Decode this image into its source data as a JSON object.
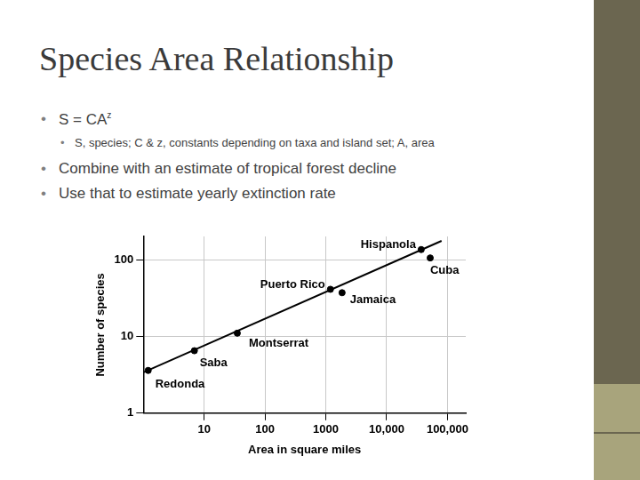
{
  "slide": {
    "title": "Species Area Relationship",
    "bullets": [
      {
        "text": "S = CA",
        "superscript": "z",
        "sub_bullets": [
          "S, species; C & z, constants depending on taxa and island set; A, area"
        ]
      },
      {
        "text": "Combine with an estimate of tropical forest decline",
        "sub_bullets": []
      },
      {
        "text": "Use that to estimate yearly extinction rate",
        "sub_bullets": []
      }
    ]
  },
  "chart_data": {
    "type": "scatter",
    "x_label": "Area in square miles",
    "y_label": "Number of species",
    "x": [
      1.2,
      6.9,
      35,
      1190,
      1850,
      37000,
      52000
    ],
    "values": [
      3.6,
      6.5,
      11,
      41,
      37,
      135,
      105
    ],
    "point_labels": [
      "Redonda",
      "Saba",
      "Montserrat",
      "Puerto Rico",
      "Jamaica",
      "Hispanola",
      "Cuba"
    ],
    "color": "#000000",
    "marker": "circle",
    "trend": {
      "x": [
        1,
        80000
      ],
      "values": [
        3.4,
        175
      ],
      "color": "#000000",
      "line_style": "solid"
    },
    "log": true,
    "grid": true,
    "xlim": [
      1,
      200000
    ],
    "xticks": [
      10,
      100,
      1000,
      {
        "value": 10000,
        "label": "10,000"
      },
      {
        "value": 100000,
        "label": "100,000"
      }
    ],
    "ylim": [
      1,
      200
    ],
    "yticks": [
      1,
      10,
      100
    ]
  }
}
